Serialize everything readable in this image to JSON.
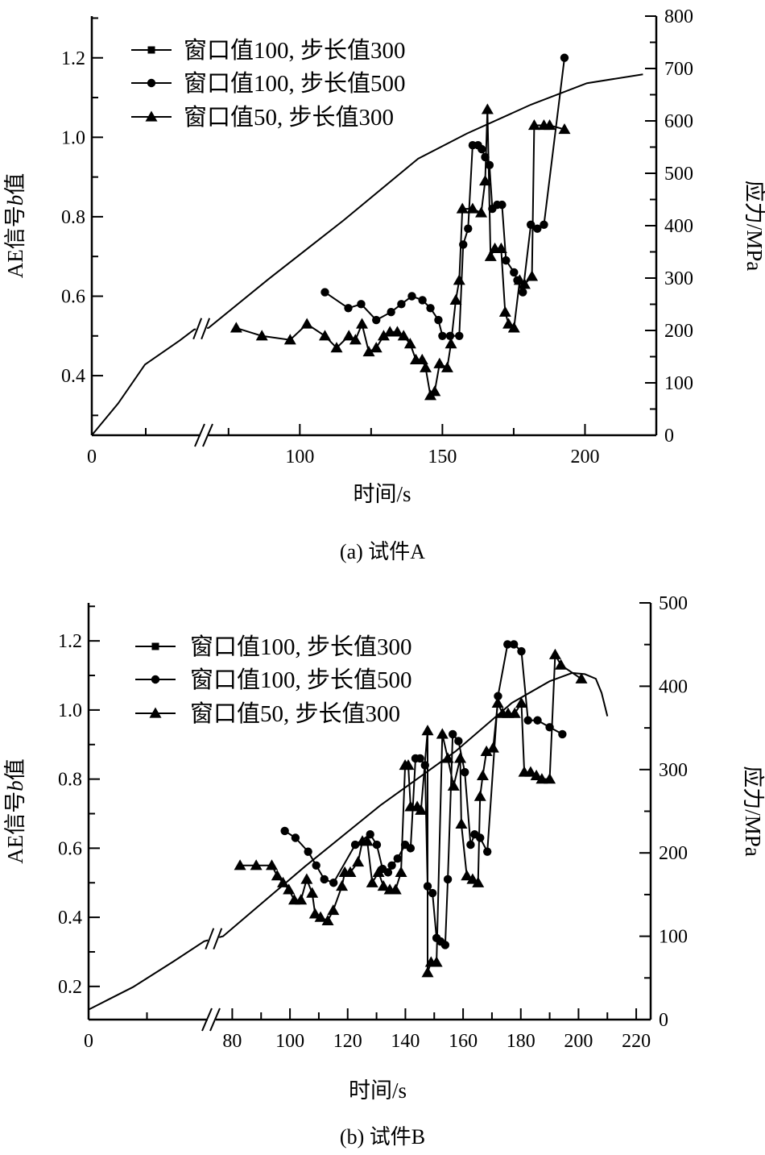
{
  "captions": [
    "(a) 试件A",
    "(b) 试件B"
  ],
  "chart_data": [
    {
      "type": "line",
      "title": "(a) 试件A",
      "xlabel": "时间/s",
      "ylabel": {
        "prefix": "AE信号",
        "italic": "b",
        "suffix": "值"
      },
      "y2label": "应力/MPa",
      "xaxis_break": [
        40,
        68
      ],
      "xticks": [
        {
          "v": 0,
          "label": "0"
        },
        {
          "v": 100,
          "label": "100"
        },
        {
          "v": 150,
          "label": "150"
        },
        {
          "v": 200,
          "label": "200"
        }
      ],
      "xminor": [
        0,
        20,
        75,
        100,
        125,
        150,
        175,
        200,
        225
      ],
      "ylim": [
        0.25,
        1.305
      ],
      "yticks": [
        {
          "v": 0.4,
          "label": "0.4"
        },
        {
          "v": 0.6,
          "label": "0.6"
        },
        {
          "v": 0.8,
          "label": "0.8"
        },
        {
          "v": 1.0,
          "label": "1.0"
        },
        {
          "v": 1.2,
          "label": "1.2"
        }
      ],
      "yminor_step": 0.1,
      "y2lim": [
        0,
        800
      ],
      "y2ticks": [
        {
          "v": 0,
          "label": "0"
        },
        {
          "v": 100,
          "label": "100"
        },
        {
          "v": 200,
          "label": "200"
        },
        {
          "v": 300,
          "label": "300"
        },
        {
          "v": 400,
          "label": "400"
        },
        {
          "v": 500,
          "label": "500"
        },
        {
          "v": 600,
          "label": "600"
        },
        {
          "v": 700,
          "label": "700"
        },
        {
          "v": 800,
          "label": "800"
        }
      ],
      "y2minor_step": 50,
      "legend_position": "top-left",
      "legend": [
        {
          "label": "窗口值100, 步长值300",
          "marker": "square"
        },
        {
          "label": "窗口值100, 步长值500",
          "marker": "circle"
        },
        {
          "label": "窗口值50, 步长值300",
          "marker": "triangle"
        }
      ],
      "stress_curve": {
        "name": "应力",
        "axis": "right",
        "x": [
          0,
          9.8,
          19.7,
          32.6,
          38,
          68,
          89,
          115.3,
          141.5,
          158.6,
          181,
          200.7,
          220.3
        ],
        "y": [
          0,
          61,
          135,
          181,
          202,
          205,
          298,
          410,
          528,
          576,
          631,
          672,
          689
        ]
      },
      "series": [
        {
          "name": "窗口值100, 步长值500",
          "marker": "circle",
          "x": [
            108.8,
            117,
            121.5,
            126.8,
            132,
            135.6,
            139.3,
            143,
            145.8,
            148.6,
            150,
            152.7,
            155.9,
            157.3,
            159,
            160.6,
            162.5,
            163.8,
            165,
            166.5,
            167.5,
            169.2,
            170.9,
            172.3,
            175.1,
            176.3,
            178.2,
            181,
            183.3,
            185.6,
            192.8
          ],
          "y": [
            0.61,
            0.57,
            0.58,
            0.54,
            0.56,
            0.58,
            0.6,
            0.59,
            0.57,
            0.54,
            0.5,
            0.5,
            0.5,
            0.73,
            0.77,
            0.98,
            0.98,
            0.97,
            0.95,
            0.93,
            0.82,
            0.83,
            0.83,
            0.69,
            0.66,
            0.64,
            0.61,
            0.78,
            0.77,
            0.78,
            1.2
          ]
        },
        {
          "name": "窗口值50, 步长值300",
          "marker": "triangle",
          "x": [
            77.7,
            86.7,
            96.6,
            102.5,
            108.8,
            112.9,
            117.2,
            119.5,
            121.8,
            124.2,
            126.8,
            129.4,
            131.6,
            134.2,
            136.4,
            138.7,
            140.7,
            142.9,
            144.1,
            145.8,
            147.3,
            149,
            151.7,
            153,
            154.7,
            155.9,
            157,
            160.6,
            163.6,
            165,
            165.8,
            166.9,
            168.4,
            170.6,
            172,
            173.2,
            175.1,
            177.1,
            178.8,
            181.4,
            182.2,
            185.6,
            187.6,
            192.8
          ],
          "y": [
            0.52,
            0.5,
            0.49,
            0.53,
            0.5,
            0.47,
            0.5,
            0.49,
            0.53,
            0.46,
            0.47,
            0.5,
            0.51,
            0.51,
            0.5,
            0.48,
            0.44,
            0.44,
            0.42,
            0.35,
            0.36,
            0.43,
            0.42,
            0.48,
            0.59,
            0.64,
            0.82,
            0.82,
            0.81,
            0.89,
            1.07,
            0.7,
            0.72,
            0.72,
            0.56,
            0.53,
            0.52,
            0.64,
            0.63,
            0.65,
            1.03,
            1.03,
            1.03,
            1.02
          ]
        }
      ]
    },
    {
      "type": "line",
      "title": "(b) 试件B",
      "xlabel": "时间/s",
      "ylabel": {
        "prefix": "AE信号",
        "italic": "b",
        "suffix": "值"
      },
      "y2label": "应力/MPa",
      "xaxis_break": [
        40,
        74
      ],
      "xticks": [
        {
          "v": 0,
          "label": "0"
        },
        {
          "v": 80,
          "label": "80"
        },
        {
          "v": 100,
          "label": "100"
        },
        {
          "v": 120,
          "label": "120"
        },
        {
          "v": 140,
          "label": "140"
        },
        {
          "v": 160,
          "label": "160"
        },
        {
          "v": 180,
          "label": "180"
        },
        {
          "v": 200,
          "label": "200"
        },
        {
          "v": 220,
          "label": "220"
        }
      ],
      "xminor": [
        0,
        20,
        80,
        90,
        100,
        110,
        120,
        130,
        140,
        150,
        160,
        170,
        180,
        190,
        200,
        210,
        220
      ],
      "ylim": [
        0.104,
        1.31
      ],
      "yticks": [
        {
          "v": 0.2,
          "label": "0.2"
        },
        {
          "v": 0.4,
          "label": "0.4"
        },
        {
          "v": 0.6,
          "label": "0.6"
        },
        {
          "v": 0.8,
          "label": "0.8"
        },
        {
          "v": 1.0,
          "label": "1.0"
        },
        {
          "v": 1.2,
          "label": "1.2"
        }
      ],
      "yminor_step": 0.1,
      "y2lim": [
        0,
        500
      ],
      "y2ticks": [
        {
          "v": 0,
          "label": "0"
        },
        {
          "v": 100,
          "label": "100"
        },
        {
          "v": 200,
          "label": "200"
        },
        {
          "v": 300,
          "label": "300"
        },
        {
          "v": 400,
          "label": "400"
        },
        {
          "v": 500,
          "label": "500"
        }
      ],
      "y2minor_step": 50,
      "legend_position": "top-left",
      "legend": [
        {
          "label": "窗口值100, 步长值300",
          "marker": "square"
        },
        {
          "label": "窗口值100, 步长值500",
          "marker": "circle"
        },
        {
          "label": "窗口值50, 步长值300",
          "marker": "triangle"
        }
      ],
      "stress_curve": {
        "name": "应力",
        "axis": "right",
        "x": [
          0,
          6.2,
          15.2,
          29.2,
          39.6,
          76.8,
          105.3,
          131.3,
          157.4,
          176.9,
          190,
          197.8,
          202.2,
          206,
          208,
          210
        ],
        "y": [
          12,
          23,
          39,
          70,
          94,
          100,
          184,
          257,
          322,
          380,
          406,
          416,
          414.5,
          409,
          392,
          364
        ]
      },
      "series": [
        {
          "name": "窗口值100, 步长值500",
          "marker": "circle",
          "x": [
            98.2,
            101.9,
            106.3,
            109.1,
            111.9,
            115.1,
            122.6,
            127.8,
            130.1,
            132.1,
            134,
            135.3,
            137.3,
            139.9,
            141.8,
            143.5,
            145.1,
            146.8,
            147.7,
            149.4,
            150.8,
            152.2,
            153.8,
            154.7,
            156.4,
            158.4,
            160.6,
            162.6,
            164,
            165.9,
            168.4,
            172.1,
            175.4,
            177.6,
            180.2,
            182.5,
            185.8,
            190,
            194.4
          ],
          "y": [
            0.65,
            0.63,
            0.59,
            0.55,
            0.51,
            0.5,
            0.61,
            0.64,
            0.61,
            0.54,
            0.53,
            0.55,
            0.57,
            0.61,
            0.6,
            0.86,
            0.86,
            0.84,
            0.49,
            0.47,
            0.34,
            0.33,
            0.32,
            0.51,
            0.93,
            0.91,
            0.82,
            0.61,
            0.64,
            0.63,
            0.59,
            1.04,
            1.19,
            1.19,
            1.17,
            0.97,
            0.97,
            0.95,
            0.93
          ]
        },
        {
          "name": "窗口值50, 步长值300",
          "marker": "triangle",
          "x": [
            82.7,
            88.3,
            93.7,
            95.6,
            97.6,
            99.6,
            101.5,
            103.8,
            105.8,
            107.7,
            108.7,
            110.6,
            113.1,
            115,
            118,
            119,
            120.9,
            123.6,
            125.1,
            126.8,
            128.5,
            130.7,
            132.4,
            134.6,
            136.6,
            138.5,
            139.9,
            141,
            141.8,
            144.1,
            145.4,
            147.7,
            147.7,
            148.9,
            150.8,
            152.8,
            154.7,
            156.7,
            159,
            159.4,
            161.3,
            163.3,
            165.2,
            165.9,
            166.8,
            168.1,
            170.4,
            172,
            173.7,
            175.6,
            177.9,
            180.2,
            181.2,
            183.4,
            185.4,
            187.3,
            190,
            191.9,
            193.9,
            201
          ],
          "y": [
            0.55,
            0.55,
            0.55,
            0.52,
            0.5,
            0.48,
            0.45,
            0.45,
            0.51,
            0.47,
            0.41,
            0.4,
            0.39,
            0.42,
            0.49,
            0.53,
            0.53,
            0.56,
            0.62,
            0.62,
            0.5,
            0.53,
            0.49,
            0.48,
            0.48,
            0.53,
            0.84,
            0.84,
            0.72,
            0.72,
            0.71,
            0.94,
            0.24,
            0.27,
            0.27,
            0.93,
            0.86,
            0.78,
            0.86,
            0.67,
            0.52,
            0.51,
            0.5,
            0.75,
            0.81,
            0.88,
            0.89,
            1.02,
            0.99,
            0.99,
            0.99,
            1.02,
            0.82,
            0.82,
            0.81,
            0.8,
            0.8,
            1.16,
            1.13,
            1.09
          ]
        }
      ]
    }
  ]
}
